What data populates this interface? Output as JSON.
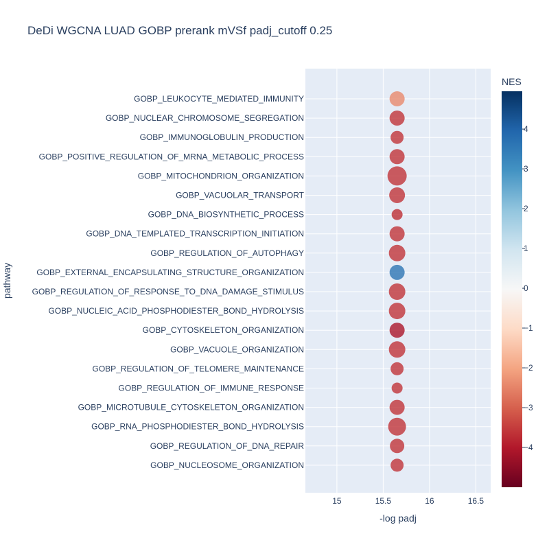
{
  "chart_data": {
    "type": "scatter",
    "title": "DeDi WGCNA LUAD GOBP prerank mVSf padj_cutoff 0.25",
    "xlabel": "-log padj",
    "ylabel": "pathway",
    "xlim": [
      14.66,
      16.66
    ],
    "xticks": [
      {
        "value": 15,
        "label": "15"
      },
      {
        "value": 15.5,
        "label": "15.5"
      },
      {
        "value": 16,
        "label": "16"
      },
      {
        "value": 16.5,
        "label": "16.5"
      }
    ],
    "colorbar": {
      "title": "NES",
      "min": -5.0,
      "max": 4.95,
      "ticks": [
        {
          "value": 4,
          "label": "4"
        },
        {
          "value": 3,
          "label": "3"
        },
        {
          "value": 2,
          "label": "2"
        },
        {
          "value": 1,
          "label": "1"
        },
        {
          "value": 0,
          "label": "0"
        },
        {
          "value": -1,
          "label": "−1"
        },
        {
          "value": -2,
          "label": "−2"
        },
        {
          "value": -3,
          "label": "−3"
        },
        {
          "value": -4,
          "label": "−4"
        }
      ],
      "colorscale": [
        [
          0.0,
          "#67001f"
        ],
        [
          0.1,
          "#b2182b"
        ],
        [
          0.2,
          "#d6604d"
        ],
        [
          0.3,
          "#f4a582"
        ],
        [
          0.4,
          "#fddbc7"
        ],
        [
          0.5,
          "#f7f7f7"
        ],
        [
          0.6,
          "#d1e5f0"
        ],
        [
          0.7,
          "#92c5de"
        ],
        [
          0.8,
          "#4393c3"
        ],
        [
          0.9,
          "#2166ac"
        ],
        [
          1.0,
          "#053061"
        ]
      ]
    },
    "points": [
      {
        "pathway": "GOBP_LEUKOCYTE_MEDIATED_IMMUNITY",
        "x": 15.65,
        "nes": -2.4,
        "size": 22
      },
      {
        "pathway": "GOBP_NUCLEAR_CHROMOSOME_SEGREGATION",
        "x": 15.65,
        "nes": -3.6,
        "size": 22
      },
      {
        "pathway": "GOBP_IMMUNOGLOBULIN_PRODUCTION",
        "x": 15.65,
        "nes": -3.6,
        "size": 19
      },
      {
        "pathway": "GOBP_POSITIVE_REGULATION_OF_MRNA_METABOLIC_PROCESS",
        "x": 15.65,
        "nes": -3.6,
        "size": 22
      },
      {
        "pathway": "GOBP_MITOCHONDRION_ORGANIZATION",
        "x": 15.65,
        "nes": -3.6,
        "size": 28
      },
      {
        "pathway": "GOBP_VACUOLAR_TRANSPORT",
        "x": 15.65,
        "nes": -3.6,
        "size": 23
      },
      {
        "pathway": "GOBP_DNA_BIOSYNTHETIC_PROCESS",
        "x": 15.65,
        "nes": -3.7,
        "size": 16
      },
      {
        "pathway": "GOBP_DNA_TEMPLATED_TRANSCRIPTION_INITIATION",
        "x": 15.65,
        "nes": -3.6,
        "size": 22
      },
      {
        "pathway": "GOBP_REGULATION_OF_AUTOPHAGY",
        "x": 15.65,
        "nes": -3.6,
        "size": 24
      },
      {
        "pathway": "GOBP_EXTERNAL_ENCAPSULATING_STRUCTURE_ORGANIZATION",
        "x": 15.65,
        "nes": 3.6,
        "size": 22
      },
      {
        "pathway": "GOBP_REGULATION_OF_RESPONSE_TO_DNA_DAMAGE_STIMULUS",
        "x": 15.65,
        "nes": -3.6,
        "size": 24
      },
      {
        "pathway": "GOBP_NUCLEIC_ACID_PHOSPHODIESTER_BOND_HYDROLYSIS",
        "x": 15.65,
        "nes": -3.6,
        "size": 24
      },
      {
        "pathway": "GOBP_CYTOSKELETON_ORGANIZATION",
        "x": 15.65,
        "nes": -4.1,
        "size": 22
      },
      {
        "pathway": "GOBP_VACUOLE_ORGANIZATION",
        "x": 15.65,
        "nes": -3.6,
        "size": 24
      },
      {
        "pathway": "GOBP_REGULATION_OF_TELOMERE_MAINTENANCE",
        "x": 15.65,
        "nes": -3.6,
        "size": 19
      },
      {
        "pathway": "GOBP_REGULATION_OF_IMMUNE_RESPONSE",
        "x": 15.65,
        "nes": -3.6,
        "size": 16
      },
      {
        "pathway": "GOBP_MICROTUBULE_CYTOSKELETON_ORGANIZATION",
        "x": 15.65,
        "nes": -3.6,
        "size": 22
      },
      {
        "pathway": "GOBP_RNA_PHOSPHODIESTER_BOND_HYDROLYSIS",
        "x": 15.65,
        "nes": -3.6,
        "size": 26
      },
      {
        "pathway": "GOBP_REGULATION_OF_DNA_REPAIR",
        "x": 15.65,
        "nes": -3.6,
        "size": 21
      },
      {
        "pathway": "GOBP_NUCLEOSOME_ORGANIZATION",
        "x": 15.65,
        "nes": -3.6,
        "size": 19
      }
    ],
    "grid": true,
    "legend": "none"
  }
}
